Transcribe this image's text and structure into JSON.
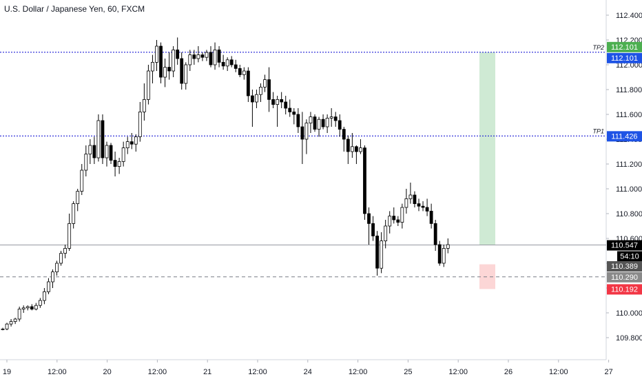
{
  "title": "U.S. Dollar / Japanese Yen, 60, FXCM",
  "colors": {
    "up_body": "#ffffff",
    "down_body": "#000000",
    "wick": "#000000",
    "tp_line": "#1b1bd6",
    "price_line": "#9598a1",
    "stop_line": "#787b86",
    "profit_zone": "#cfead4",
    "loss_zone": "#fcd6d6",
    "tag_green": "#4caf50",
    "tag_blue": "#1e53e5",
    "tag_black": "#000000",
    "tag_gray": "#555555",
    "tag_lightgray": "#8a8a8a",
    "tag_red": "#f23645"
  },
  "chart_data": {
    "type": "candlestick",
    "x_ticks": [
      "19",
      "12:00",
      "20",
      "12:00",
      "21",
      "12:00",
      "24",
      "12:00",
      "25",
      "12:00",
      "26",
      "12:00",
      "27"
    ],
    "y_ticks": [
      "109.800",
      "110.000",
      "110.200",
      "110.400",
      "110.600",
      "110.800",
      "111.000",
      "111.200",
      "111.400",
      "111.600",
      "111.800",
      "112.000",
      "112.200",
      "112.400"
    ],
    "ylim": [
      109.6,
      112.5
    ],
    "candles": [
      [
        109.87,
        109.88,
        109.86,
        109.87
      ],
      [
        109.87,
        109.92,
        109.86,
        109.91
      ],
      [
        109.91,
        109.95,
        109.89,
        109.93
      ],
      [
        109.93,
        109.96,
        109.91,
        109.95
      ],
      [
        109.95,
        110.05,
        109.93,
        110.03
      ],
      [
        110.03,
        110.06,
        110.0,
        110.04
      ],
      [
        110.04,
        110.06,
        110.02,
        110.05
      ],
      [
        110.05,
        110.07,
        110.02,
        110.03
      ],
      [
        110.03,
        110.08,
        110.02,
        110.06
      ],
      [
        110.06,
        110.12,
        110.04,
        110.1
      ],
      [
        110.1,
        110.2,
        110.07,
        110.17
      ],
      [
        110.17,
        110.28,
        110.15,
        110.25
      ],
      [
        110.25,
        110.35,
        110.2,
        110.33
      ],
      [
        110.33,
        110.42,
        110.3,
        110.4
      ],
      [
        110.4,
        110.5,
        110.38,
        110.48
      ],
      [
        110.48,
        110.55,
        110.44,
        110.52
      ],
      [
        110.52,
        110.8,
        110.5,
        110.72
      ],
      [
        110.72,
        110.9,
        110.68,
        110.88
      ],
      [
        110.88,
        111.0,
        110.82,
        110.98
      ],
      [
        110.98,
        111.2,
        110.95,
        111.15
      ],
      [
        111.15,
        111.35,
        111.1,
        111.28
      ],
      [
        111.28,
        111.4,
        111.2,
        111.35
      ],
      [
        111.35,
        111.42,
        111.2,
        111.25
      ],
      [
        111.25,
        111.6,
        111.22,
        111.55
      ],
      [
        111.55,
        111.6,
        111.2,
        111.25
      ],
      [
        111.25,
        111.38,
        111.18,
        111.35
      ],
      [
        111.35,
        111.37,
        111.2,
        111.23
      ],
      [
        111.23,
        111.3,
        111.1,
        111.18
      ],
      [
        111.18,
        111.25,
        111.12,
        111.22
      ],
      [
        111.22,
        111.38,
        111.18,
        111.33
      ],
      [
        111.33,
        111.42,
        111.28,
        111.38
      ],
      [
        111.38,
        111.45,
        111.32,
        111.36
      ],
      [
        111.36,
        111.44,
        111.3,
        111.42
      ],
      [
        111.42,
        111.7,
        111.38,
        111.62
      ],
      [
        111.62,
        111.85,
        111.55,
        111.72
      ],
      [
        111.72,
        112.0,
        111.68,
        111.95
      ],
      [
        111.95,
        112.08,
        111.85,
        112.02
      ],
      [
        112.02,
        112.2,
        111.95,
        112.15
      ],
      [
        112.15,
        112.18,
        111.85,
        111.9
      ],
      [
        111.9,
        112.05,
        111.82,
        111.98
      ],
      [
        111.98,
        112.1,
        111.88,
        111.95
      ],
      [
        111.95,
        112.15,
        111.9,
        112.12
      ],
      [
        112.12,
        112.22,
        112.0,
        112.05
      ],
      [
        112.05,
        112.1,
        111.8,
        111.85
      ],
      [
        111.85,
        112.02,
        111.8,
        112.0
      ],
      [
        112.0,
        112.12,
        111.95,
        112.08
      ],
      [
        112.08,
        112.12,
        112.0,
        112.05
      ],
      [
        112.05,
        112.15,
        112.02,
        112.08
      ],
      [
        112.08,
        112.1,
        112.03,
        112.06
      ],
      [
        112.06,
        112.12,
        112.03,
        112.1
      ],
      [
        112.1,
        112.15,
        111.98,
        112.0
      ],
      [
        112.0,
        112.18,
        111.96,
        112.12
      ],
      [
        112.12,
        112.15,
        111.98,
        112.02
      ],
      [
        112.02,
        112.08,
        111.96,
        111.99
      ],
      [
        111.99,
        112.06,
        111.95,
        112.04
      ],
      [
        112.04,
        112.07,
        111.98,
        112.0
      ],
      [
        112.0,
        112.04,
        111.94,
        111.97
      ],
      [
        111.97,
        112.0,
        111.9,
        111.92
      ],
      [
        111.92,
        111.98,
        111.88,
        111.95
      ],
      [
        111.95,
        111.98,
        111.7,
        111.75
      ],
      [
        111.75,
        111.8,
        111.5,
        111.7
      ],
      [
        111.7,
        111.8,
        111.65,
        111.76
      ],
      [
        111.76,
        111.85,
        111.7,
        111.82
      ],
      [
        111.82,
        111.92,
        111.78,
        111.88
      ],
      [
        111.88,
        111.98,
        111.62,
        111.72
      ],
      [
        111.72,
        111.78,
        111.65,
        111.68
      ],
      [
        111.68,
        111.75,
        111.5,
        111.72
      ],
      [
        111.72,
        111.78,
        111.65,
        111.7
      ],
      [
        111.7,
        111.75,
        111.6,
        111.65
      ],
      [
        111.65,
        111.72,
        111.58,
        111.62
      ],
      [
        111.62,
        111.65,
        111.52,
        111.6
      ],
      [
        111.6,
        111.65,
        111.45,
        111.5
      ],
      [
        111.5,
        111.62,
        111.2,
        111.4
      ],
      [
        111.4,
        111.56,
        111.28,
        111.53
      ],
      [
        111.53,
        111.62,
        111.45,
        111.58
      ],
      [
        111.58,
        111.6,
        111.46,
        111.48
      ],
      [
        111.48,
        111.58,
        111.42,
        111.56
      ],
      [
        111.56,
        111.6,
        111.48,
        111.5
      ],
      [
        111.5,
        111.6,
        111.45,
        111.57
      ],
      [
        111.57,
        111.65,
        111.5,
        111.58
      ],
      [
        111.58,
        111.62,
        111.5,
        111.55
      ],
      [
        111.55,
        111.6,
        111.42,
        111.48
      ],
      [
        111.48,
        111.5,
        111.3,
        111.4
      ],
      [
        111.4,
        111.43,
        111.2,
        111.3
      ],
      [
        111.3,
        111.45,
        111.25,
        111.34
      ],
      [
        111.34,
        111.35,
        111.2,
        111.3
      ],
      [
        111.3,
        111.4,
        111.28,
        111.33
      ],
      [
        111.33,
        111.35,
        110.75,
        110.8
      ],
      [
        110.8,
        110.85,
        110.55,
        110.72
      ],
      [
        110.72,
        110.78,
        110.58,
        110.62
      ],
      [
        110.62,
        110.66,
        110.3,
        110.36
      ],
      [
        110.36,
        110.65,
        110.32,
        110.58
      ],
      [
        110.58,
        110.75,
        110.52,
        110.7
      ],
      [
        110.7,
        110.82,
        110.64,
        110.78
      ],
      [
        110.78,
        110.85,
        110.72,
        110.75
      ],
      [
        110.75,
        110.78,
        110.7,
        110.73
      ],
      [
        110.73,
        110.88,
        110.68,
        110.85
      ],
      [
        110.85,
        111.0,
        110.8,
        110.92
      ],
      [
        110.92,
        111.05,
        110.88,
        110.95
      ],
      [
        110.95,
        110.98,
        110.85,
        110.88
      ],
      [
        110.88,
        110.92,
        110.82,
        110.86
      ],
      [
        110.86,
        110.9,
        110.82,
        110.85
      ],
      [
        110.85,
        110.92,
        110.78,
        110.82
      ],
      [
        110.82,
        110.88,
        110.68,
        110.72
      ],
      [
        110.72,
        110.75,
        110.5,
        110.55
      ],
      [
        110.55,
        110.58,
        110.38,
        110.4
      ],
      [
        110.4,
        110.55,
        110.37,
        110.52
      ],
      [
        110.52,
        110.6,
        110.48,
        110.55
      ]
    ],
    "price_levels": [
      {
        "name": "TP2",
        "value": 112.101
      },
      {
        "name": "TP1",
        "value": 111.426
      },
      {
        "name": "",
        "value": 110.547
      },
      {
        "name": "",
        "value": 110.29
      }
    ],
    "price_tags": [
      {
        "text": "112.101",
        "value": 112.101,
        "offset": -8,
        "color": "tag_green"
      },
      {
        "text": "112.101",
        "value": 112.101,
        "offset": 8,
        "color": "tag_blue"
      },
      {
        "text": "111.426",
        "value": 111.426,
        "offset": 0,
        "color": "tag_blue"
      },
      {
        "text": "110.547",
        "value": 110.547,
        "offset": 0,
        "color": "tag_black"
      },
      {
        "text": "54:10",
        "value": 110.547,
        "offset": 16,
        "color": "tag_black",
        "small": true
      },
      {
        "text": "110.389",
        "value": 110.389,
        "offset": 2,
        "color": "tag_gray"
      },
      {
        "text": "110.290",
        "value": 110.29,
        "offset": 0,
        "color": "tag_lightgray"
      },
      {
        "text": "110.192",
        "value": 110.192,
        "offset": 0,
        "color": "tag_red"
      }
    ],
    "position": {
      "entry": 110.547,
      "target": 112.101,
      "stop": 110.192
    }
  }
}
